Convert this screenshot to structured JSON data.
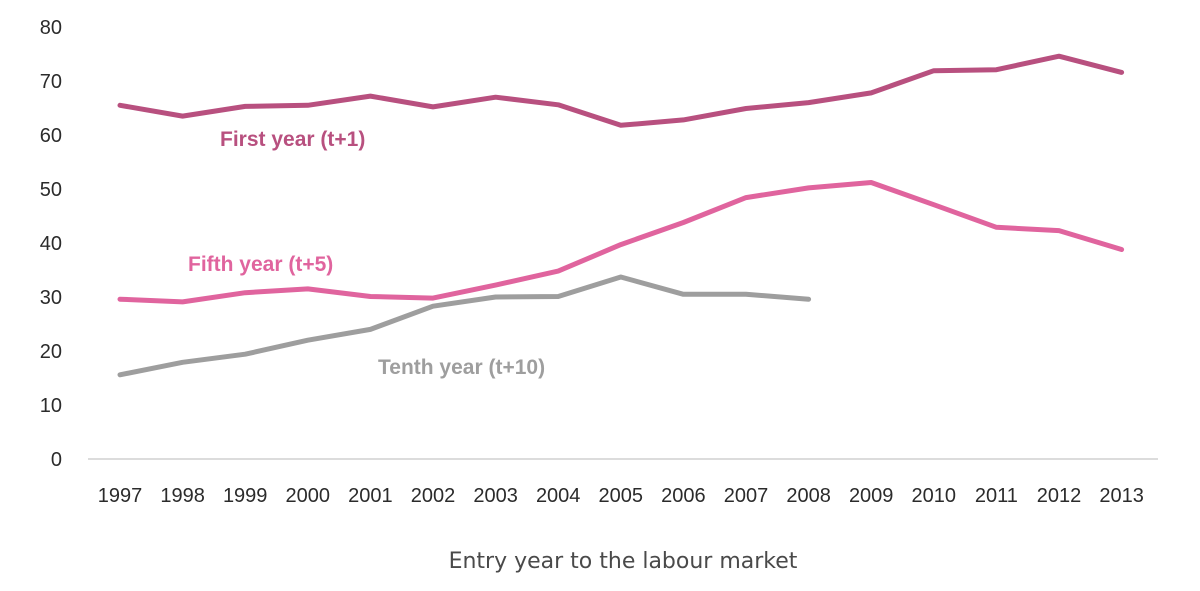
{
  "chart_data": {
    "type": "line",
    "title": "",
    "xlabel": "Entry year to the labour market",
    "ylabel": "",
    "categories": [
      "1997",
      "1998",
      "1999",
      "2000",
      "2001",
      "2002",
      "2003",
      "2004",
      "2005",
      "2006",
      "2007",
      "2008",
      "2009",
      "2010",
      "2011",
      "2012",
      "2013"
    ],
    "ylim": [
      0,
      80
    ],
    "yticks": [
      "0",
      "10",
      "20",
      "30",
      "40",
      "50",
      "60",
      "70",
      "80"
    ],
    "grid": false,
    "legend": "inline labels",
    "series": [
      {
        "name": "First year (t+1)",
        "color": "#b8507f",
        "values": [
          65.5,
          63.5,
          65.3,
          65.5,
          67.2,
          65.2,
          67.0,
          65.6,
          61.8,
          62.8,
          64.9,
          66.0,
          67.8,
          71.9,
          72.1,
          74.6,
          71.6
        ]
      },
      {
        "name": "Fifth year (t+5)",
        "color": "#e0649e",
        "values": [
          29.6,
          29.1,
          30.8,
          31.5,
          30.1,
          29.8,
          32.2,
          34.8,
          39.7,
          43.8,
          48.4,
          50.2,
          51.2,
          47.1,
          42.9,
          42.3,
          38.8
        ]
      },
      {
        "name": "Tenth year (t+10)",
        "color": "#9e9e9e",
        "values": [
          15.6,
          17.9,
          19.4,
          22.0,
          24.0,
          28.3,
          30.0,
          30.1,
          33.7,
          30.5,
          30.5,
          29.6,
          null,
          null,
          null,
          null,
          null
        ]
      }
    ]
  }
}
